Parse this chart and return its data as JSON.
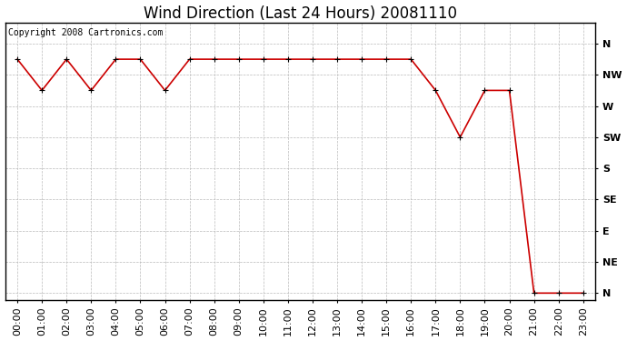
{
  "title": "Wind Direction (Last 24 Hours) 20081110",
  "copyright_text": "Copyright 2008 Cartronics.com",
  "x_labels": [
    "00:00",
    "01:00",
    "02:00",
    "03:00",
    "04:00",
    "05:00",
    "06:00",
    "07:00",
    "08:00",
    "09:00",
    "10:00",
    "11:00",
    "12:00",
    "13:00",
    "14:00",
    "15:00",
    "16:00",
    "17:00",
    "18:00",
    "19:00",
    "20:00",
    "21:00",
    "22:00",
    "23:00"
  ],
  "data_hours": [
    0,
    1,
    2,
    3,
    4,
    5,
    6,
    7,
    8,
    9,
    10,
    11,
    12,
    13,
    14,
    15,
    16,
    17,
    18,
    19,
    20,
    21,
    22,
    23
  ],
  "data_directions": [
    337.5,
    292.5,
    337.5,
    292.5,
    337.5,
    337.5,
    292.5,
    337.5,
    337.5,
    337.5,
    337.5,
    337.5,
    337.5,
    337.5,
    337.5,
    337.5,
    337.5,
    292.5,
    225,
    292.5,
    292.5,
    0,
    0,
    0
  ],
  "y_ticks": [
    360,
    315,
    270,
    225,
    180,
    135,
    90,
    45,
    0
  ],
  "y_tick_labels": [
    "N",
    "NW",
    "W",
    "SW",
    "S",
    "SE",
    "E",
    "NE",
    "N"
  ],
  "line_color": "#cc0000",
  "marker": "+",
  "marker_size": 5,
  "background_color": "#ffffff",
  "grid_color": "#bbbbbb",
  "title_fontsize": 12,
  "copyright_fontsize": 7,
  "tick_fontsize": 8,
  "figsize": [
    6.9,
    3.75
  ],
  "dpi": 100
}
